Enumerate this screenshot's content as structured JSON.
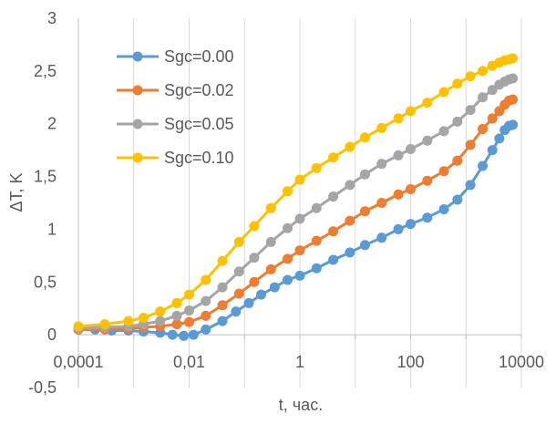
{
  "chart_data": {
    "type": "scatter",
    "title": "",
    "xlabel": "t, час.",
    "ylabel": "ΔT, K",
    "xscale": "log",
    "xlim": [
      0.0001,
      10000
    ],
    "ylim": [
      -0.5,
      3
    ],
    "grid": "vertical",
    "legend_position": "top-left",
    "x_tick_labels": [
      "0,0001",
      "0,01",
      "1",
      "100",
      "10000"
    ],
    "y_tick_labels": [
      "-0,5",
      "0",
      "0,5",
      "1",
      "1,5",
      "2",
      "2,5",
      "3"
    ],
    "colors": {
      "Sgc=0.00": "#5b9bd5",
      "Sgc=0.02": "#ed7d31",
      "Sgc=0.05": "#a5a5a5",
      "Sgc=0.10": "#ffc000"
    },
    "series": [
      {
        "name": "Sgc=0.00",
        "color": "#5b9bd5",
        "points": [
          [
            0.0001,
            0.05
          ],
          [
            0.0002,
            0.05
          ],
          [
            0.0004,
            0.04
          ],
          [
            0.0008,
            0.04
          ],
          [
            0.0015,
            0.03
          ],
          [
            0.003,
            0.02
          ],
          [
            0.005,
            0.0
          ],
          [
            0.008,
            -0.01
          ],
          [
            0.012,
            0.0
          ],
          [
            0.02,
            0.05
          ],
          [
            0.04,
            0.13
          ],
          [
            0.07,
            0.22
          ],
          [
            0.12,
            0.3
          ],
          [
            0.2,
            0.38
          ],
          [
            0.35,
            0.45
          ],
          [
            0.6,
            0.52
          ],
          [
            1,
            0.56
          ],
          [
            2,
            0.63
          ],
          [
            4,
            0.71
          ],
          [
            8,
            0.78
          ],
          [
            15,
            0.85
          ],
          [
            30,
            0.92
          ],
          [
            60,
            1.0
          ],
          [
            100,
            1.05
          ],
          [
            200,
            1.11
          ],
          [
            400,
            1.19
          ],
          [
            700,
            1.28
          ],
          [
            1200,
            1.42
          ],
          [
            2000,
            1.6
          ],
          [
            3000,
            1.75
          ],
          [
            4000,
            1.86
          ],
          [
            5000,
            1.94
          ],
          [
            6000,
            1.98
          ],
          [
            7000,
            1.99
          ]
        ]
      },
      {
        "name": "Sgc=0.02",
        "color": "#ed7d31",
        "points": [
          [
            0.0001,
            0.05
          ],
          [
            0.0003,
            0.05
          ],
          [
            0.0008,
            0.06
          ],
          [
            0.0015,
            0.07
          ],
          [
            0.003,
            0.08
          ],
          [
            0.006,
            0.1
          ],
          [
            0.01,
            0.12
          ],
          [
            0.02,
            0.18
          ],
          [
            0.04,
            0.28
          ],
          [
            0.08,
            0.39
          ],
          [
            0.15,
            0.5
          ],
          [
            0.3,
            0.62
          ],
          [
            0.6,
            0.72
          ],
          [
            1,
            0.8
          ],
          [
            2,
            0.89
          ],
          [
            4,
            0.98
          ],
          [
            8,
            1.08
          ],
          [
            15,
            1.17
          ],
          [
            30,
            1.25
          ],
          [
            60,
            1.33
          ],
          [
            100,
            1.38
          ],
          [
            200,
            1.46
          ],
          [
            400,
            1.55
          ],
          [
            700,
            1.65
          ],
          [
            1200,
            1.8
          ],
          [
            2000,
            1.95
          ],
          [
            3000,
            2.05
          ],
          [
            4000,
            2.12
          ],
          [
            5000,
            2.18
          ],
          [
            6000,
            2.22
          ],
          [
            7000,
            2.23
          ]
        ]
      },
      {
        "name": "Sgc=0.05",
        "color": "#a5a5a5",
        "points": [
          [
            0.0001,
            0.06
          ],
          [
            0.0003,
            0.07
          ],
          [
            0.0008,
            0.08
          ],
          [
            0.0015,
            0.1
          ],
          [
            0.003,
            0.13
          ],
          [
            0.006,
            0.18
          ],
          [
            0.01,
            0.23
          ],
          [
            0.02,
            0.32
          ],
          [
            0.04,
            0.45
          ],
          [
            0.08,
            0.6
          ],
          [
            0.15,
            0.73
          ],
          [
            0.3,
            0.88
          ],
          [
            0.6,
            1.01
          ],
          [
            1,
            1.1
          ],
          [
            2,
            1.2
          ],
          [
            4,
            1.31
          ],
          [
            8,
            1.42
          ],
          [
            15,
            1.52
          ],
          [
            30,
            1.62
          ],
          [
            60,
            1.7
          ],
          [
            100,
            1.76
          ],
          [
            200,
            1.84
          ],
          [
            400,
            1.93
          ],
          [
            700,
            2.02
          ],
          [
            1200,
            2.13
          ],
          [
            2000,
            2.25
          ],
          [
            3000,
            2.32
          ],
          [
            4000,
            2.37
          ],
          [
            5000,
            2.4
          ],
          [
            6000,
            2.42
          ],
          [
            7000,
            2.43
          ]
        ]
      },
      {
        "name": "Sgc=0.10",
        "color": "#ffc000",
        "points": [
          [
            0.0001,
            0.08
          ],
          [
            0.0003,
            0.1
          ],
          [
            0.0008,
            0.13
          ],
          [
            0.0015,
            0.16
          ],
          [
            0.003,
            0.22
          ],
          [
            0.006,
            0.3
          ],
          [
            0.01,
            0.38
          ],
          [
            0.02,
            0.52
          ],
          [
            0.04,
            0.7
          ],
          [
            0.08,
            0.88
          ],
          [
            0.15,
            1.03
          ],
          [
            0.3,
            1.2
          ],
          [
            0.6,
            1.36
          ],
          [
            1,
            1.47
          ],
          [
            2,
            1.58
          ],
          [
            4,
            1.68
          ],
          [
            8,
            1.78
          ],
          [
            15,
            1.87
          ],
          [
            30,
            1.96
          ],
          [
            60,
            2.05
          ],
          [
            100,
            2.12
          ],
          [
            200,
            2.2
          ],
          [
            400,
            2.3
          ],
          [
            700,
            2.38
          ],
          [
            1200,
            2.45
          ],
          [
            2000,
            2.5
          ],
          [
            3000,
            2.55
          ],
          [
            4000,
            2.58
          ],
          [
            5000,
            2.6
          ],
          [
            6000,
            2.61
          ],
          [
            7000,
            2.62
          ]
        ]
      }
    ]
  }
}
